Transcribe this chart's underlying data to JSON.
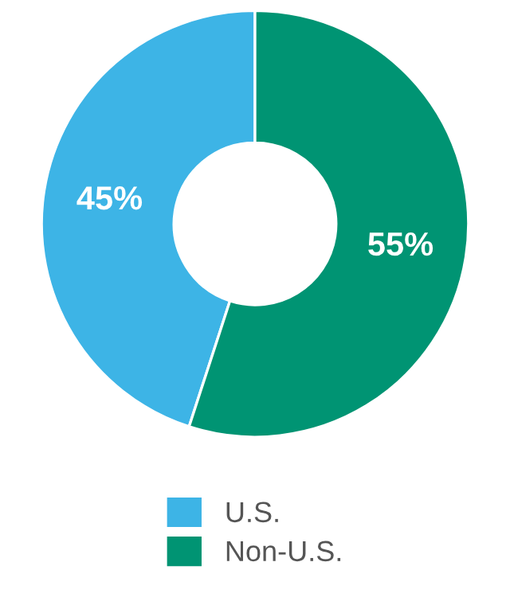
{
  "chart_data": {
    "type": "donut",
    "categories": [
      "U.S.",
      "Non-U.S."
    ],
    "values": [
      45,
      55
    ],
    "colors": [
      "#3db4e6",
      "#009473"
    ],
    "value_labels": [
      "45%",
      "55%"
    ],
    "legend": "bottom"
  }
}
